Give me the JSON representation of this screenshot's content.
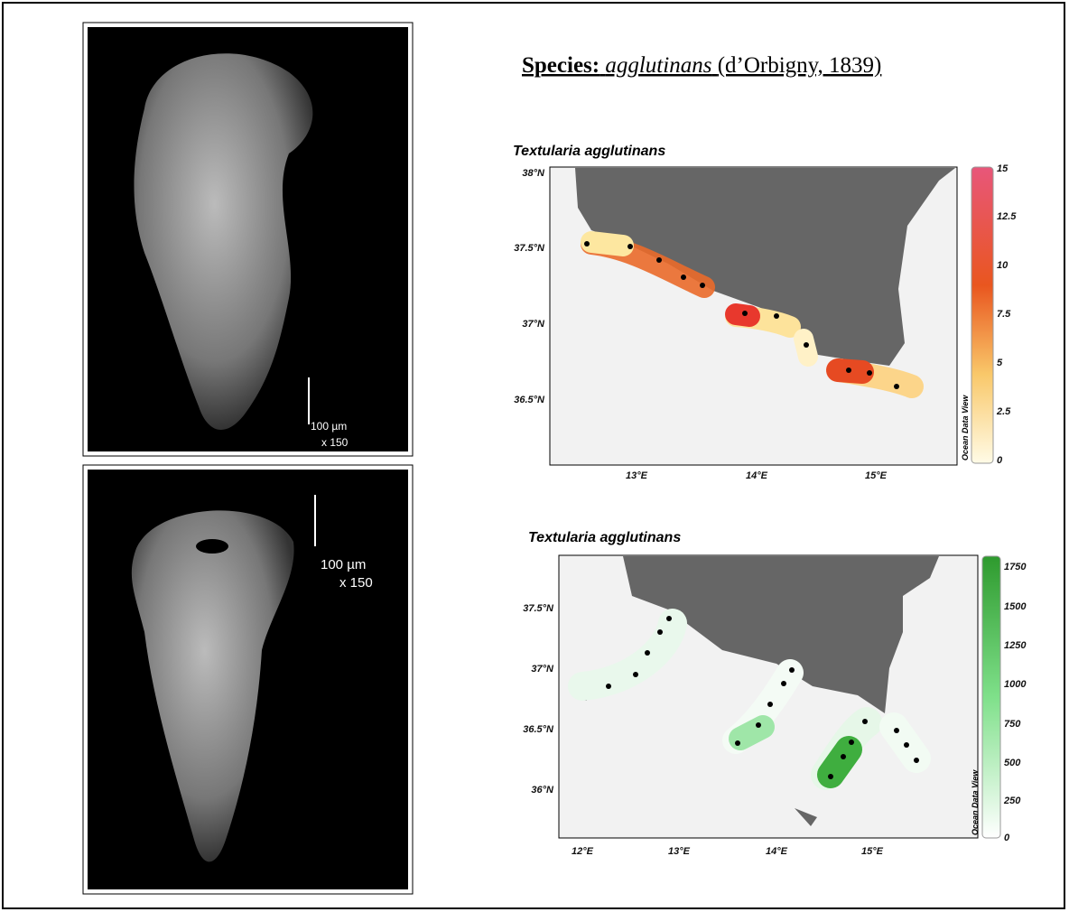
{
  "header": {
    "label": "Species:",
    "species": "agglutinans",
    "authority": "(d’Orbigny, 1839)"
  },
  "images": [
    {
      "scale": "100 µm",
      "magnification": "x 150"
    },
    {
      "scale": "100 µm",
      "magnification": "x 150"
    }
  ],
  "maps": [
    {
      "title": "Textularia agglutinans",
      "lat_labels": [
        "38°N",
        "37.5°N",
        "37°N",
        "36.5°N"
      ],
      "lon_labels": [
        "13°E",
        "14°E",
        "15°E"
      ],
      "colorbar_labels": [
        15,
        12.5,
        10,
        7.5,
        5,
        2.5,
        0
      ],
      "credit": "Ocean Data View"
    },
    {
      "title": "Textularia agglutinans",
      "lat_labels": [
        "37.5°N",
        "37°N",
        "36.5°N",
        "36°N"
      ],
      "lon_labels": [
        "12°E",
        "13°E",
        "14°E",
        "15°E"
      ],
      "colorbar_labels": [
        1750,
        1500,
        1250,
        1000,
        750,
        500,
        250,
        0
      ],
      "credit": "Ocean Data View"
    }
  ]
}
